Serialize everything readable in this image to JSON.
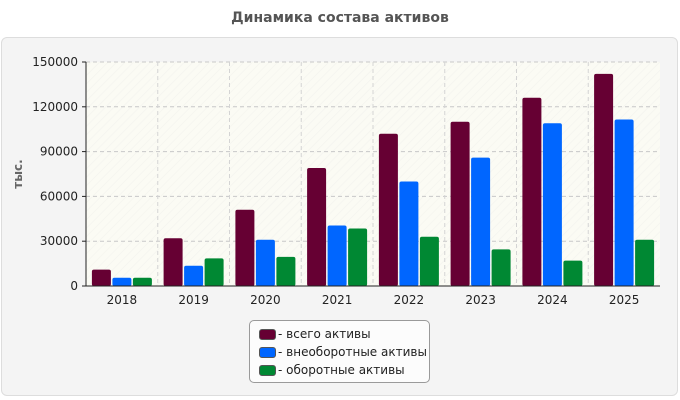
{
  "chart_data": {
    "type": "bar",
    "title": "Динамика состава активов",
    "ylabel": "тыс.",
    "xlabel": "",
    "ylim": [
      0,
      150000
    ],
    "yticks": [
      "0",
      "30000",
      "60000",
      "90000",
      "120000",
      "150000"
    ],
    "ytick_values": [
      0,
      30000,
      60000,
      90000,
      120000,
      150000
    ],
    "categories": [
      "2018",
      "2019",
      "2020",
      "2021",
      "2022",
      "2023",
      "2024",
      "2025"
    ],
    "series": [
      {
        "name": "- всего активы",
        "color": "#660033",
        "values": [
          11000,
          32000,
          51000,
          79000,
          102000,
          110000,
          126000,
          142000
        ]
      },
      {
        "name": "- внеоборотные активы",
        "color": "#0066ff",
        "values": [
          5500,
          13500,
          31000,
          40500,
          70000,
          86000,
          109000,
          111500
        ]
      },
      {
        "name": "- оборотные активы",
        "color": "#008833",
        "values": [
          5500,
          18500,
          19500,
          38500,
          33000,
          24500,
          17000,
          31000
        ]
      }
    ],
    "grid": true,
    "legend_position": "bottom"
  }
}
